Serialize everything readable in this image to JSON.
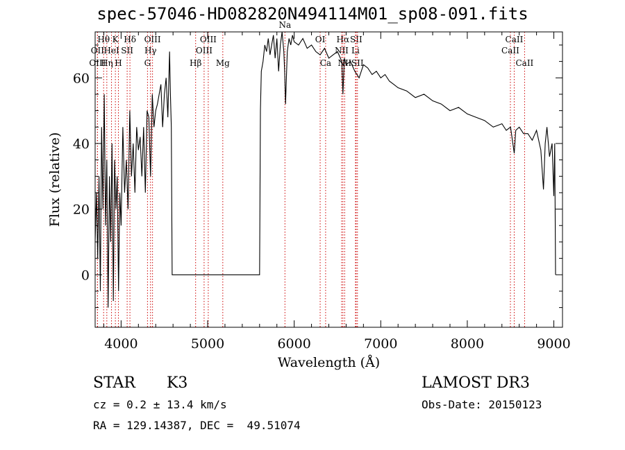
{
  "chart_data": {
    "type": "line",
    "title": "spec-57046-HD082820N494114M01_sp08-091.fits",
    "xlabel": "Wavelength (Å)",
    "ylabel": "Flux (relative)",
    "xlim": [
      3700,
      9100
    ],
    "ylim": [
      -16,
      74
    ],
    "x_ticks": [
      4000,
      5000,
      6000,
      7000,
      8000,
      9000
    ],
    "x_tick_labels": [
      "4000",
      "5000",
      "6000",
      "7000",
      "8000",
      "9000"
    ],
    "y_ticks": [
      0,
      20,
      40,
      60
    ],
    "y_tick_labels": [
      "0",
      "20",
      "40",
      "60"
    ],
    "series": [
      {
        "name": "spectrum",
        "x": [
          3700,
          3715,
          3730,
          3745,
          3760,
          3775,
          3790,
          3805,
          3820,
          3835,
          3850,
          3865,
          3880,
          3895,
          3910,
          3925,
          3940,
          3955,
          3970,
          3985,
          4000,
          4020,
          4040,
          4060,
          4080,
          4100,
          4120,
          4140,
          4160,
          4180,
          4200,
          4220,
          4240,
          4260,
          4280,
          4300,
          4320,
          4340,
          4360,
          4380,
          4400,
          4420,
          4440,
          4460,
          4480,
          4500,
          4520,
          4540,
          4560,
          4570,
          4580,
          4590,
          5600,
          5610,
          5620,
          5640,
          5660,
          5680,
          5700,
          5720,
          5740,
          5760,
          5780,
          5800,
          5820,
          5840,
          5860,
          5880,
          5890,
          5900,
          5910,
          5920,
          5940,
          5960,
          5980,
          6000,
          6050,
          6100,
          6150,
          6200,
          6250,
          6300,
          6350,
          6400,
          6450,
          6500,
          6550,
          6563,
          6580,
          6600,
          6650,
          6700,
          6750,
          6800,
          6850,
          6900,
          6950,
          7000,
          7050,
          7100,
          7150,
          7200,
          7300,
          7400,
          7500,
          7600,
          7700,
          7800,
          7900,
          8000,
          8100,
          8200,
          8300,
          8400,
          8450,
          8500,
          8542,
          8560,
          8600,
          8650,
          8700,
          8750,
          8800,
          8850,
          8880,
          8900,
          8920,
          8950,
          8980,
          9000,
          9010,
          9020
        ],
        "y": [
          10,
          25,
          5,
          30,
          -5,
          45,
          20,
          55,
          15,
          35,
          -10,
          30,
          10,
          40,
          -8,
          35,
          20,
          30,
          -5,
          25,
          15,
          45,
          25,
          35,
          20,
          50,
          30,
          40,
          25,
          45,
          38,
          42,
          30,
          45,
          25,
          50,
          48,
          30,
          55,
          45,
          50,
          52,
          55,
          58,
          45,
          55,
          60,
          48,
          68,
          55,
          45,
          0,
          0,
          50,
          62,
          65,
          70,
          68,
          72,
          67,
          70,
          73,
          66,
          72,
          62,
          70,
          74,
          68,
          62,
          52,
          60,
          68,
          72,
          70,
          73,
          71,
          70,
          72,
          69,
          70,
          68,
          67,
          69,
          66,
          67,
          68,
          65,
          55,
          66,
          64,
          65,
          62,
          60,
          64,
          63,
          61,
          62,
          60,
          61,
          59,
          58,
          57,
          56,
          54,
          55,
          53,
          52,
          50,
          51,
          49,
          48,
          47,
          45,
          46,
          44,
          45,
          37,
          44,
          45,
          43,
          43,
          41,
          44,
          38,
          26,
          40,
          45,
          36,
          40,
          24,
          40,
          0
        ]
      }
    ],
    "lines": [
      {
        "label": "Hθ",
        "x": 3798,
        "row": 1
      },
      {
        "label": "OII",
        "x": 3727,
        "row": 2
      },
      {
        "label": "OIII",
        "x": 3727,
        "row": 3
      },
      {
        "label": "K",
        "x": 3934,
        "row": 1
      },
      {
        "label": "HeI",
        "x": 3889,
        "row": 2
      },
      {
        "label": "Hη",
        "x": 3835,
        "row": 3
      },
      {
        "label": "Hδ",
        "x": 4102,
        "row": 1
      },
      {
        "label": "SII",
        "x": 4070,
        "row": 2
      },
      {
        "label": "H",
        "x": 3969,
        "row": 3
      },
      {
        "label": "OIII",
        "x": 4363,
        "row": 1
      },
      {
        "label": "Hγ",
        "x": 4340,
        "row": 2
      },
      {
        "label": "G",
        "x": 4305,
        "row": 3
      },
      {
        "label": "OIII",
        "x": 5007,
        "row": 1
      },
      {
        "label": "OIII",
        "x": 4959,
        "row": 2
      },
      {
        "label": "Hβ",
        "x": 4861,
        "row": 3
      },
      {
        "label": "Mg",
        "x": 5175,
        "row": 3
      },
      {
        "label": "Na",
        "x": 5893,
        "row": 0
      },
      {
        "label": "OI",
        "x": 6300,
        "row": 1
      },
      {
        "label": "Ca",
        "x": 6363,
        "row": 3
      },
      {
        "label": "Hα",
        "x": 6563,
        "row": 1
      },
      {
        "label": "NII",
        "x": 6548,
        "row": 2
      },
      {
        "label": "NII",
        "x": 6583,
        "row": 3
      },
      {
        "label": "SII",
        "x": 6716,
        "row": 1
      },
      {
        "label": "Li",
        "x": 6708,
        "row": 2
      },
      {
        "label": "SII",
        "x": 6731,
        "row": 3
      },
      {
        "label": "CaII",
        "x": 8542,
        "row": 1
      },
      {
        "label": "CaII",
        "x": 8498,
        "row": 2
      },
      {
        "label": "CaII",
        "x": 8662,
        "row": 3
      }
    ]
  },
  "info": {
    "object_class": "STAR",
    "subclass": "K3",
    "survey": "LAMOST DR3",
    "cz": "cz = 0.2 ± 13.4 km/s",
    "obs_date": "Obs-Date: 20150123",
    "coords": "RA = 129.14387, DEC =  49.51074"
  },
  "colors": {
    "spectrum": "#000000",
    "line_marker": "#cc0000",
    "axes": "#000000"
  }
}
